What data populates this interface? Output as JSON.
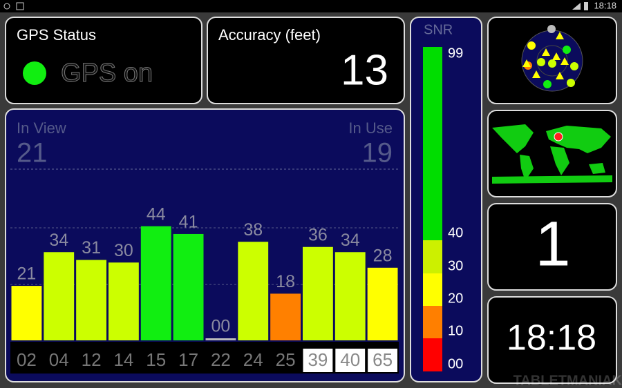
{
  "status_bar": {
    "time": "18:18"
  },
  "gps_status": {
    "title": "GPS Status",
    "status": "GPS on"
  },
  "accuracy": {
    "title": "Accuracy (feet)",
    "value": 13
  },
  "satellites": {
    "in_view_label": "In View",
    "in_view": 21,
    "in_use_label": "In Use",
    "in_use": 19
  },
  "chart_data": {
    "type": "bar",
    "categories": [
      "02",
      "04",
      "12",
      "14",
      "15",
      "17",
      "22",
      "24",
      "25",
      "39",
      "40",
      "65"
    ],
    "values": [
      21,
      34,
      31,
      30,
      44,
      41,
      0,
      38,
      18,
      36,
      34,
      28
    ],
    "value_labels": [
      "21",
      "34",
      "31",
      "30",
      "44",
      "41",
      "00",
      "38",
      "18",
      "36",
      "34",
      "28"
    ],
    "colors": [
      "#ffff00",
      "#ccff00",
      "#ccff00",
      "#ccff00",
      "#11ee11",
      "#11ee11",
      "#bbbbbb",
      "#ccff00",
      "#ff8000",
      "#ccff00",
      "#ccff00",
      "#ffff00"
    ],
    "in_use": [
      true,
      true,
      true,
      true,
      true,
      true,
      true,
      true,
      true,
      false,
      false,
      false
    ],
    "ylim": [
      0,
      66
    ]
  },
  "snr_scale": {
    "title": "SNR",
    "top_label": "99",
    "segments": [
      {
        "label": "40",
        "color": "#00dd00"
      },
      {
        "label": "30",
        "color": "#ccf000"
      },
      {
        "label": "20",
        "color": "#ffff00"
      },
      {
        "label": "10",
        "color": "#ff7f00"
      },
      {
        "label": "00",
        "color": "#ff0000"
      }
    ]
  },
  "fix_count": 1,
  "clock": "18:18",
  "watermark": "TABLETMANIAK"
}
